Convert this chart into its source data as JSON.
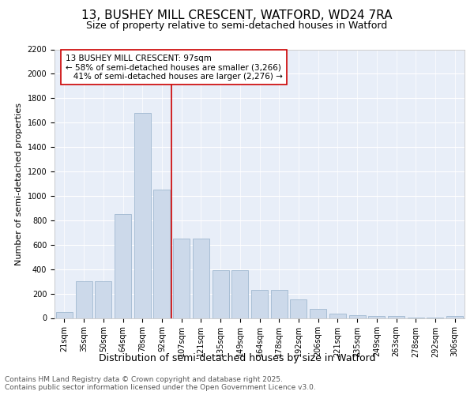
{
  "title1": "13, BUSHEY MILL CRESCENT, WATFORD, WD24 7RA",
  "title2": "Size of property relative to semi-detached houses in Watford",
  "xlabel": "Distribution of semi-detached houses by size in Watford",
  "ylabel": "Number of semi-detached properties",
  "categories": [
    "21sqm",
    "35sqm",
    "50sqm",
    "64sqm",
    "78sqm",
    "92sqm",
    "107sqm",
    "121sqm",
    "135sqm",
    "149sqm",
    "164sqm",
    "178sqm",
    "192sqm",
    "206sqm",
    "221sqm",
    "235sqm",
    "249sqm",
    "263sqm",
    "278sqm",
    "292sqm",
    "306sqm"
  ],
  "values": [
    50,
    300,
    300,
    850,
    1680,
    1050,
    650,
    650,
    390,
    390,
    230,
    230,
    155,
    75,
    35,
    25,
    18,
    18,
    5,
    5,
    15
  ],
  "bar_color": "#ccd9ea",
  "bar_edge_color": "#a0b8d0",
  "vline_color": "#cc0000",
  "vline_x": 5.5,
  "annotation_label": "13 BUSHEY MILL CRESCENT: 97sqm",
  "pct_smaller": "58%",
  "n_smaller": "3,266",
  "pct_larger": "41%",
  "n_larger": "2,276",
  "ylim": [
    0,
    2200
  ],
  "yticks": [
    0,
    200,
    400,
    600,
    800,
    1000,
    1200,
    1400,
    1600,
    1800,
    2000,
    2200
  ],
  "bg_color": "#e8eef8",
  "title1_fontsize": 11,
  "title2_fontsize": 9,
  "xlabel_fontsize": 9,
  "ylabel_fontsize": 8,
  "tick_fontsize": 7,
  "annotation_fontsize": 7.5,
  "footer_fontsize": 6.5,
  "footer": "Contains HM Land Registry data © Crown copyright and database right 2025.\nContains public sector information licensed under the Open Government Licence v3.0."
}
